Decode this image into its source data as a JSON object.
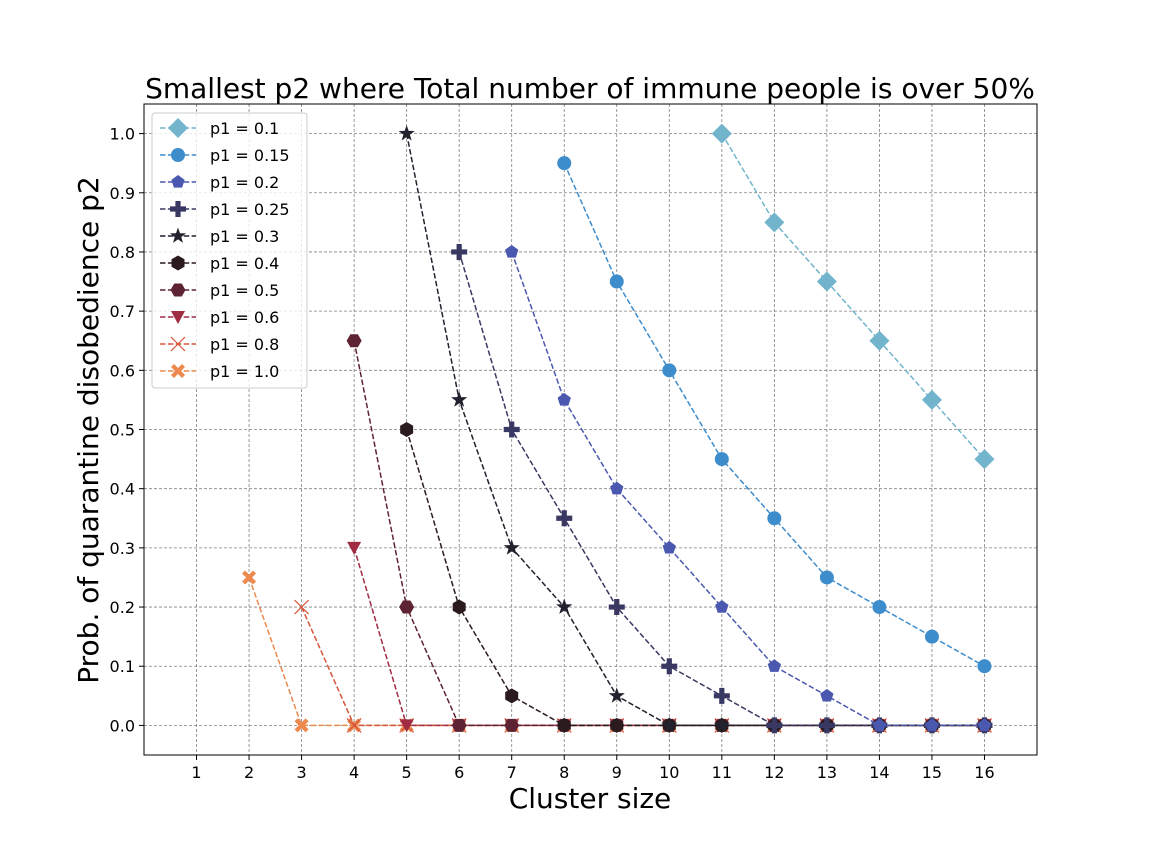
{
  "chart_data": {
    "type": "line",
    "title": "Smallest p2 where Total number of immune people is over 50%",
    "xlabel": "Cluster size",
    "ylabel": "Prob. of quarantine disobedience p2",
    "xlim": [
      0,
      17
    ],
    "ylim": [
      -0.05,
      1.05
    ],
    "xticks": [
      "1",
      "2",
      "3",
      "4",
      "5",
      "6",
      "7",
      "8",
      "9",
      "10",
      "11",
      "12",
      "13",
      "14",
      "15",
      "16"
    ],
    "yticks": [
      "0.0",
      "0.1",
      "0.2",
      "0.3",
      "0.4",
      "0.5",
      "0.6",
      "0.7",
      "0.8",
      "0.9",
      "1.0"
    ],
    "grid": true,
    "legend_position": "top-left",
    "series": [
      {
        "name": "p1 = 0.1",
        "color": "#72b4cc",
        "marker": "diamond",
        "x": [
          11,
          12,
          13,
          14,
          15,
          16
        ],
        "y": [
          1.0,
          0.85,
          0.75,
          0.65,
          0.55,
          0.45
        ]
      },
      {
        "name": "p1 = 0.15",
        "color": "#3d8ccc",
        "marker": "circle",
        "x": [
          8,
          9,
          10,
          11,
          12,
          13,
          14,
          15,
          16
        ],
        "y": [
          0.95,
          0.75,
          0.6,
          0.45,
          0.35,
          0.25,
          0.2,
          0.15,
          0.1
        ]
      },
      {
        "name": "p1 = 0.2",
        "color": "#4a58b0",
        "marker": "pentagon",
        "x": [
          7,
          8,
          9,
          10,
          11,
          12,
          13,
          14,
          15,
          16
        ],
        "y": [
          0.8,
          0.55,
          0.4,
          0.3,
          0.2,
          0.1,
          0.05,
          0.0,
          0.0,
          0.0
        ]
      },
      {
        "name": "p1 = 0.25",
        "color": "#393863",
        "marker": "plus",
        "x": [
          6,
          7,
          8,
          9,
          10,
          11,
          12,
          13,
          14,
          15,
          16
        ],
        "y": [
          0.8,
          0.5,
          0.35,
          0.2,
          0.1,
          0.05,
          0.0,
          0.0,
          0.0,
          0.0,
          0.0
        ]
      },
      {
        "name": "p1 = 0.3",
        "color": "#22212e",
        "marker": "star",
        "x": [
          5,
          6,
          7,
          8,
          9,
          10,
          11,
          12,
          13,
          14,
          15,
          16
        ],
        "y": [
          1.0,
          0.55,
          0.3,
          0.2,
          0.05,
          0.0,
          0.0,
          0.0,
          0.0,
          0.0,
          0.0,
          0.0
        ]
      },
      {
        "name": "p1 = 0.4",
        "color": "#2b1a1e",
        "marker": "hexagon",
        "x": [
          5,
          6,
          7,
          8,
          9,
          10,
          11,
          12,
          13,
          14,
          15,
          16
        ],
        "y": [
          0.5,
          0.2,
          0.05,
          0.0,
          0.0,
          0.0,
          0.0,
          0.0,
          0.0,
          0.0,
          0.0,
          0.0
        ]
      },
      {
        "name": "p1 = 0.5",
        "color": "#5e2332",
        "marker": "hexagon2",
        "x": [
          4,
          5,
          6,
          7,
          8,
          9,
          10,
          11,
          12,
          13,
          14,
          15,
          16
        ],
        "y": [
          0.65,
          0.2,
          0.0,
          0.0,
          0.0,
          0.0,
          0.0,
          0.0,
          0.0,
          0.0,
          0.0,
          0.0,
          0.0
        ]
      },
      {
        "name": "p1 = 0.6",
        "color": "#a02c44",
        "marker": "triangle-down",
        "x": [
          4,
          5,
          6,
          7,
          8,
          9,
          10,
          11,
          12,
          13,
          14,
          15,
          16
        ],
        "y": [
          0.3,
          0.0,
          0.0,
          0.0,
          0.0,
          0.0,
          0.0,
          0.0,
          0.0,
          0.0,
          0.0,
          0.0,
          0.0
        ]
      },
      {
        "name": "p1 = 0.8",
        "color": "#d8553c",
        "marker": "x",
        "x": [
          3,
          4,
          5,
          6,
          7,
          8,
          9,
          10,
          11,
          12,
          13,
          14,
          15,
          16
        ],
        "y": [
          0.2,
          0.0,
          0.0,
          0.0,
          0.0,
          0.0,
          0.0,
          0.0,
          0.0,
          0.0,
          0.0,
          0.0,
          0.0,
          0.0
        ]
      },
      {
        "name": "p1 = 1.0",
        "color": "#ec8a4e",
        "marker": "x-filled",
        "x": [
          2,
          3,
          4,
          5,
          6,
          7,
          8,
          9,
          10,
          11,
          12,
          13,
          14,
          15,
          16
        ],
        "y": [
          0.25,
          0.0,
          0.0,
          0.0,
          0.0,
          0.0,
          0.0,
          0.0,
          0.0,
          0.0,
          0.0,
          0.0,
          0.0,
          0.0,
          0.0
        ]
      }
    ]
  }
}
